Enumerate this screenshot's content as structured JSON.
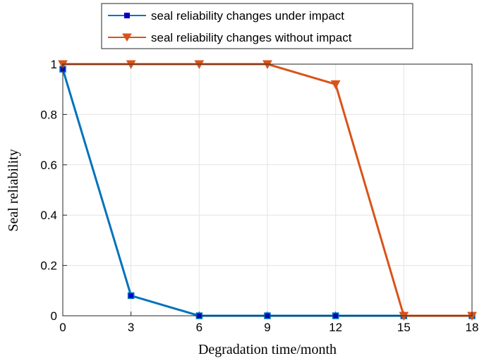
{
  "chart_data": {
    "type": "line",
    "title": "",
    "xlabel": "Degradation time/month",
    "ylabel": "Seal reliability",
    "x": [
      0,
      3,
      6,
      9,
      12,
      15,
      18
    ],
    "xlim": [
      0,
      18
    ],
    "ylim": [
      0,
      1
    ],
    "xticks": [
      "0",
      "3",
      "6",
      "9",
      "12",
      "15",
      "18"
    ],
    "yticks": [
      "0",
      "0.2",
      "0.4",
      "0.6",
      "0.8",
      "1"
    ],
    "grid": true,
    "legend": "top",
    "series": [
      {
        "name": "seal reliability changes under impact",
        "values": [
          0.98,
          0.08,
          0,
          0,
          0,
          0,
          0
        ],
        "color": "#0072BD",
        "marker": "square"
      },
      {
        "name": "seal reliability changes without impact",
        "values": [
          1,
          1,
          1,
          1,
          0.92,
          0,
          0
        ],
        "color": "#D95319",
        "marker": "triangle-down"
      }
    ]
  }
}
